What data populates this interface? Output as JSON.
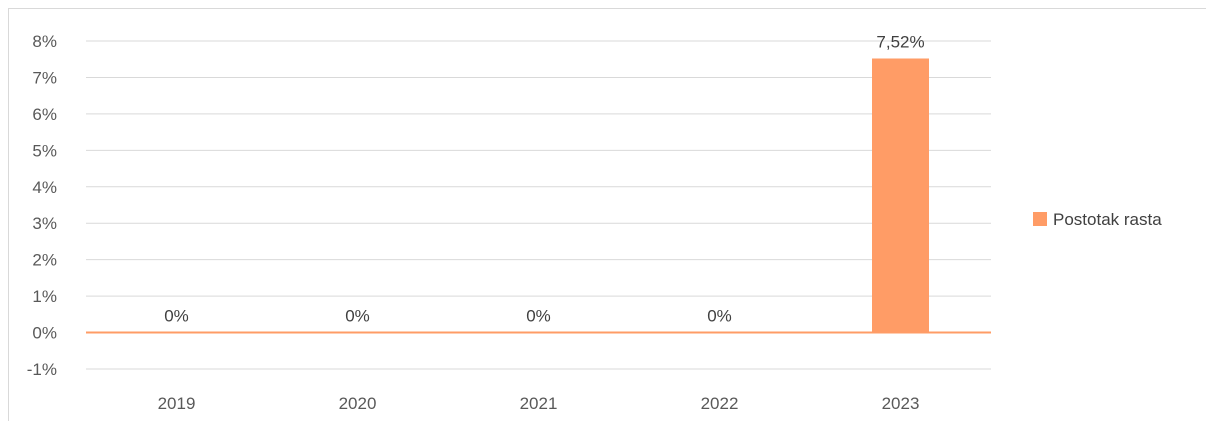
{
  "chart_data": {
    "type": "bar",
    "categories": [
      "2019",
      "2020",
      "2021",
      "2022",
      "2023"
    ],
    "series": [
      {
        "name": "Postotak rasta",
        "values": [
          0,
          0,
          0,
          0,
          7.52
        ],
        "data_labels": [
          "0%",
          "0%",
          "0%",
          "0%",
          "7,52%"
        ],
        "color": "#ff9c66"
      }
    ],
    "y_ticks": [
      "8%",
      "7%",
      "6%",
      "5%",
      "4%",
      "3%",
      "2%",
      "1%",
      "0%",
      "-1%"
    ],
    "ylim": [
      -1,
      8
    ],
    "grid": true,
    "legend": "right",
    "colors": {
      "grid": "#d9d9d9",
      "baseline": "#ff9c66",
      "text": "#595959"
    }
  }
}
